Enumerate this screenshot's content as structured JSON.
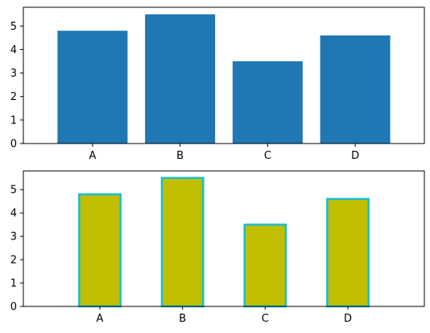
{
  "chart_data": [
    {
      "type": "bar",
      "categories": [
        "A",
        "B",
        "C",
        "D"
      ],
      "values": [
        4.8,
        5.5,
        3.5,
        4.6
      ],
      "ylim": [
        0,
        5.8
      ],
      "yticks": [
        0,
        1,
        2,
        3,
        4,
        5
      ],
      "bar_color": "#1f77b4",
      "edge_color": "",
      "grid": false
    },
    {
      "type": "bar",
      "categories": [
        "A",
        "B",
        "C",
        "D"
      ],
      "values": [
        4.8,
        5.5,
        3.5,
        4.6
      ],
      "ylim": [
        0,
        5.8
      ],
      "yticks": [
        0,
        1,
        2,
        3,
        4,
        5
      ],
      "bar_color": "#bfbf00",
      "edge_color": "#17becf",
      "grid": false
    }
  ]
}
